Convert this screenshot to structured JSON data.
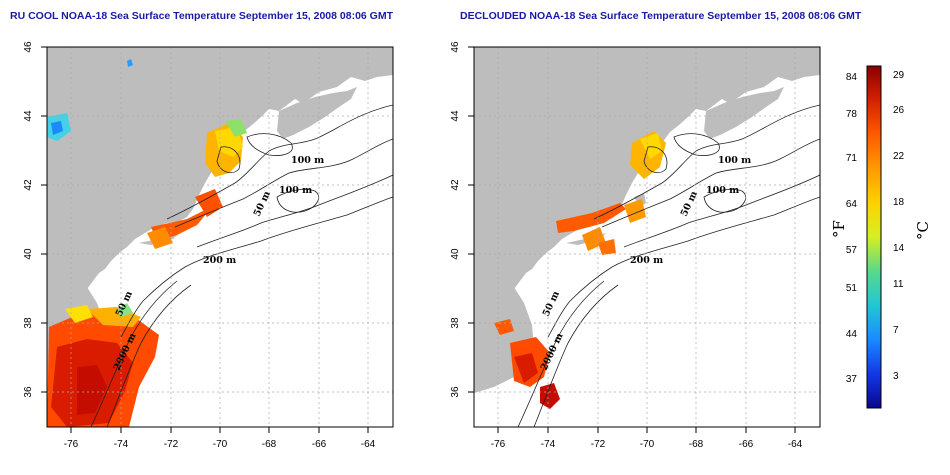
{
  "panels": [
    {
      "title": "RU COOL NOAA-18 Sea Surface Temperature September 15, 2008 08:06 GMT",
      "lon_ticks": [
        "-76",
        "-74",
        "-72",
        "-70",
        "-68",
        "-66",
        "-64"
      ],
      "lat_ticks": [
        "46",
        "44",
        "42",
        "40",
        "38",
        "36"
      ],
      "contour_labels": [
        "100 m",
        "100 m",
        "50 m",
        "200 m",
        "50 m",
        "2000 m"
      ]
    },
    {
      "title": "DECLOUDED NOAA-18 Sea Surface Temperature September 15, 2008 08:06 GMT",
      "lon_ticks": [
        "-76",
        "-74",
        "-72",
        "-70",
        "-68",
        "-66",
        "-64"
      ],
      "lat_ticks": [
        "46",
        "44",
        "42",
        "40",
        "38",
        "36"
      ],
      "contour_labels": [
        "100 m",
        "100 m",
        "50 m",
        "200 m",
        "50 m",
        "2000 m"
      ]
    }
  ],
  "map_extent": {
    "lon": [
      -77,
      -63
    ],
    "lat": [
      35,
      46
    ]
  },
  "colorbar": {
    "fahrenheit_unit": "°F",
    "celsius_unit": "°C",
    "fahrenheit_ticks": [
      "84",
      "78",
      "71",
      "64",
      "57",
      "51",
      "44",
      "37"
    ],
    "celsius_ticks": [
      "29",
      "26",
      "22",
      "18",
      "14",
      "11",
      "7",
      "3"
    ],
    "colors": [
      "#8b0000",
      "#d42200",
      "#ff5a00",
      "#ff9a00",
      "#ffd200",
      "#d6ef22",
      "#58d98a",
      "#22c6d6",
      "#1a8aff",
      "#1238e6",
      "#08078f"
    ]
  },
  "colors": {
    "land": "#bdbdbd",
    "ocean": "#ffffff",
    "title": "#1a1aa6",
    "grid": "#aaaaaa"
  }
}
